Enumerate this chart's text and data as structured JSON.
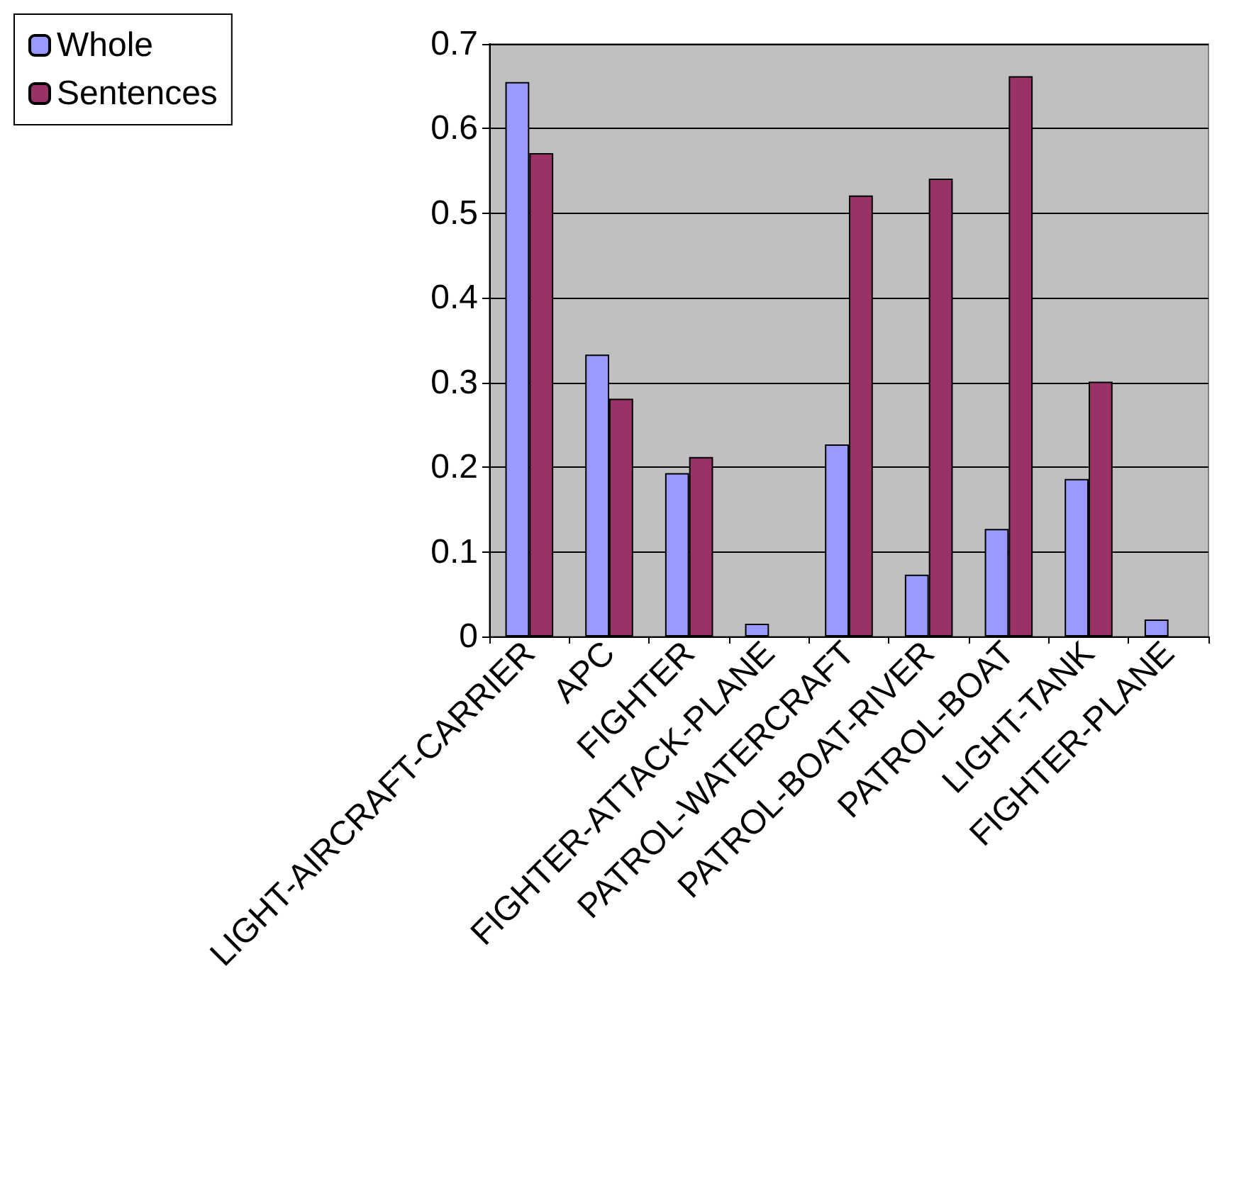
{
  "chart_data": {
    "type": "bar",
    "categories": [
      "LIGHT-AIRCRAFT-CARRIER",
      "APC",
      "FIGHTER",
      "FIGHTER-ATTACK-PLANE",
      "PATROL-WATERCRAFT",
      "PATROL-BOAT-RIVER",
      "PATROL-BOAT",
      "LIGHT-TANK",
      "FIGHTER-PLANE"
    ],
    "series": [
      {
        "name": "Whole",
        "color": "#9999ff",
        "values": [
          0.655,
          0.333,
          0.193,
          0.015,
          0.227,
          0.073,
          0.127,
          0.186,
          0.02
        ]
      },
      {
        "name": "Sentences",
        "color": "#993366",
        "values": [
          0.571,
          0.281,
          0.212,
          null,
          0.521,
          0.541,
          0.662,
          0.301,
          null
        ]
      }
    ],
    "ylim": [
      0,
      0.7
    ],
    "yticks": [
      0,
      0.1,
      0.2,
      0.3,
      0.4,
      0.5,
      0.6,
      0.7
    ],
    "grid": "y",
    "legend": "top left"
  }
}
